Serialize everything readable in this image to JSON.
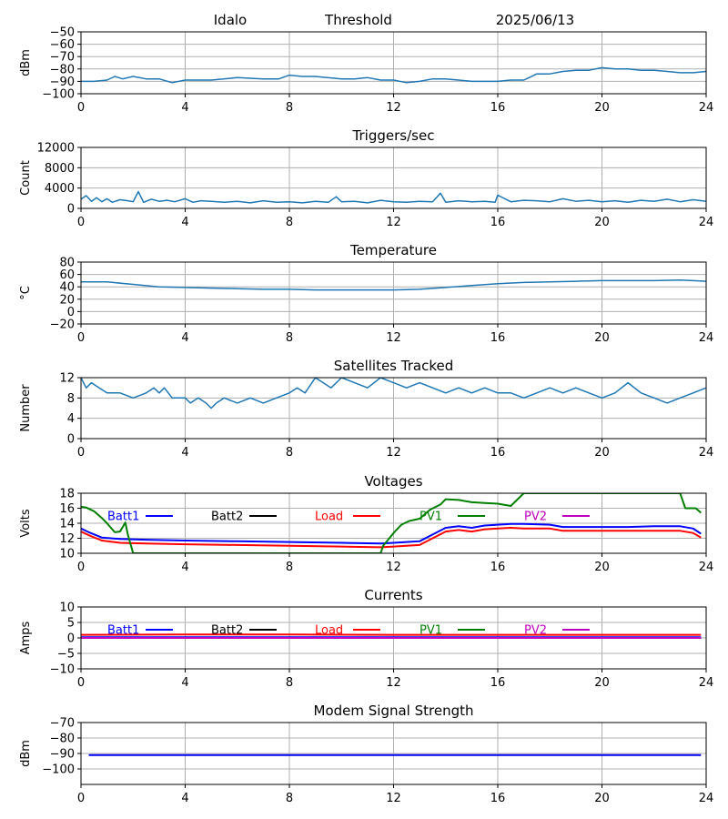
{
  "header": {
    "station": "Idalo",
    "mode": "Threshold",
    "date": "2025/06/13"
  },
  "colors": {
    "series_default": "#1f77b4",
    "grid": "#b0b0b0",
    "batt1": "#0000ff",
    "batt2": "#000000",
    "load": "#ff0000",
    "pv1": "#008000",
    "pv2": "#bf00bf"
  },
  "chart_data": [
    {
      "id": "threshold",
      "type": "line",
      "title": "",
      "xlabel": "",
      "ylabel": "dBm",
      "xlim": [
        0,
        24
      ],
      "ylim": [
        -100,
        -50
      ],
      "xticks": [
        0,
        4,
        8,
        12,
        16,
        20,
        24
      ],
      "yticks": [
        -100,
        -90,
        -80,
        -70,
        -60,
        -50
      ],
      "grid": true,
      "series": [
        {
          "color": "#1f77b4",
          "x": [
            0,
            0.5,
            1,
            1.3,
            1.6,
            2,
            2.5,
            3,
            3.5,
            4,
            5,
            6,
            7,
            7.6,
            8,
            8.5,
            9,
            10,
            10.5,
            11,
            11.5,
            12,
            12.5,
            13,
            13.5,
            14,
            14.5,
            15,
            15.5,
            16,
            16.5,
            17,
            17.2,
            17.5,
            18,
            18.5,
            19,
            19.5,
            20,
            20.5,
            21,
            21.5,
            22,
            22.5,
            23,
            23.5,
            24
          ],
          "values": [
            -90,
            -90,
            -89,
            -86,
            -88,
            -86,
            -88,
            -88,
            -91,
            -89,
            -89,
            -87,
            -88,
            -88,
            -85,
            -86,
            -86,
            -88,
            -88,
            -87,
            -89,
            -89,
            -91,
            -90,
            -88,
            -88,
            -89,
            -90,
            -90,
            -90,
            -89,
            -89,
            -87,
            -84,
            -84,
            -82,
            -81,
            -81,
            -79,
            -80,
            -80,
            -81,
            -81,
            -82,
            -83,
            -83,
            -82
          ]
        }
      ]
    },
    {
      "id": "triggers",
      "type": "line",
      "title": "Triggers/sec",
      "xlabel": "",
      "ylabel": "Count",
      "xlim": [
        0,
        24
      ],
      "ylim": [
        0,
        12000
      ],
      "xticks": [
        0,
        4,
        8,
        12,
        16,
        20,
        24
      ],
      "yticks": [
        0,
        4000,
        8000,
        12000
      ],
      "grid": true,
      "series": [
        {
          "color": "#1f77b4",
          "x": [
            0,
            0.2,
            0.4,
            0.6,
            0.8,
            1,
            1.2,
            1.5,
            1.8,
            2,
            2.2,
            2.4,
            2.7,
            3,
            3.3,
            3.6,
            4,
            4.3,
            4.6,
            5,
            5.5,
            6,
            6.5,
            7,
            7.5,
            8,
            8.5,
            9,
            9.5,
            9.8,
            10,
            10.5,
            11,
            11.5,
            12,
            12.5,
            13,
            13.5,
            13.8,
            14,
            14.5,
            15,
            15.5,
            15.9,
            16,
            16.5,
            17,
            17.5,
            18,
            18.5,
            19,
            19.5,
            20,
            20.5,
            21,
            21.5,
            22,
            22.5,
            23,
            23.5,
            24
          ],
          "values": [
            1800,
            2500,
            1400,
            2100,
            1300,
            1900,
            1200,
            1700,
            1500,
            1300,
            3300,
            1200,
            1800,
            1400,
            1600,
            1300,
            1900,
            1200,
            1500,
            1400,
            1200,
            1400,
            1100,
            1500,
            1200,
            1300,
            1100,
            1400,
            1200,
            2300,
            1300,
            1400,
            1100,
            1600,
            1300,
            1200,
            1400,
            1300,
            3000,
            1200,
            1500,
            1300,
            1400,
            1200,
            2600,
            1300,
            1600,
            1500,
            1300,
            1900,
            1400,
            1600,
            1300,
            1500,
            1200,
            1600,
            1400,
            1800,
            1300,
            1700,
            1400
          ]
        }
      ]
    },
    {
      "id": "temperature",
      "type": "line",
      "title": "Temperature",
      "xlabel": "",
      "ylabel": "°C",
      "xlim": [
        0,
        24
      ],
      "ylim": [
        -20,
        80
      ],
      "xticks": [
        0,
        4,
        8,
        12,
        16,
        20,
        24
      ],
      "yticks": [
        -20,
        0,
        20,
        40,
        60,
        80
      ],
      "grid": true,
      "series": [
        {
          "color": "#1f77b4",
          "x": [
            0,
            1,
            2,
            3,
            4,
            5,
            6,
            7,
            8,
            9,
            10,
            11,
            12,
            13,
            14,
            15,
            16,
            17,
            18,
            19,
            20,
            21,
            22,
            23,
            23.5,
            24
          ],
          "values": [
            48,
            48,
            44,
            40,
            39,
            38,
            37,
            36,
            36,
            35,
            35,
            35,
            35,
            36,
            39,
            42,
            45,
            47,
            48,
            49,
            50,
            50,
            50,
            51,
            50,
            49
          ]
        }
      ]
    },
    {
      "id": "satellites",
      "type": "line",
      "title": "Satellites Tracked",
      "xlabel": "",
      "ylabel": "Number",
      "xlim": [
        0,
        24
      ],
      "ylim": [
        0,
        12
      ],
      "xticks": [
        0,
        4,
        8,
        12,
        16,
        20,
        24
      ],
      "yticks": [
        0,
        4,
        8,
        12
      ],
      "grid": true,
      "series": [
        {
          "color": "#1f77b4",
          "x": [
            0,
            0.2,
            0.4,
            0.7,
            1,
            1.5,
            2,
            2.5,
            2.8,
            3,
            3.2,
            3.5,
            4,
            4.2,
            4.5,
            4.8,
            5,
            5.2,
            5.5,
            6,
            6.5,
            7,
            7.5,
            8,
            8.3,
            8.6,
            9,
            9.3,
            9.6,
            10,
            10.5,
            11,
            11.5,
            12,
            12.5,
            13,
            13.5,
            14,
            14.5,
            15,
            15.5,
            16,
            16.5,
            17,
            17.5,
            18,
            18.5,
            19,
            19.5,
            20,
            20.5,
            21,
            21.5,
            22,
            22.5,
            23,
            23.5,
            24
          ],
          "values": [
            12,
            10,
            11,
            10,
            9,
            9,
            8,
            9,
            10,
            9,
            10,
            8,
            8,
            7,
            8,
            7,
            6,
            7,
            8,
            7,
            8,
            7,
            8,
            9,
            10,
            9,
            12,
            11,
            10,
            12,
            11,
            10,
            12,
            11,
            10,
            11,
            10,
            9,
            10,
            9,
            10,
            9,
            9,
            8,
            9,
            10,
            9,
            10,
            9,
            8,
            9,
            11,
            9,
            8,
            7,
            8,
            9,
            10
          ]
        }
      ]
    },
    {
      "id": "voltages",
      "type": "line",
      "title": "Voltages",
      "xlabel": "",
      "ylabel": "Volts",
      "xlim": [
        0,
        24
      ],
      "ylim": [
        10,
        18
      ],
      "xticks": [
        0,
        4,
        8,
        12,
        16,
        20,
        24
      ],
      "yticks": [
        10,
        12,
        14,
        16,
        18
      ],
      "grid": true,
      "legend_placement": "top",
      "series": [
        {
          "name": "Batt1",
          "color": "#0000ff",
          "x": [
            0,
            0.3,
            0.8,
            1.5,
            2.5,
            4,
            6,
            8,
            10,
            11.5,
            12,
            13,
            13.5,
            14,
            14.5,
            15,
            15.5,
            16,
            16.5,
            17,
            18,
            18.5,
            19,
            20,
            21,
            22,
            23,
            23.5,
            23.8
          ],
          "values": [
            13.3,
            12.8,
            12.1,
            11.9,
            11.8,
            11.7,
            11.6,
            11.5,
            11.4,
            11.3,
            11.4,
            11.6,
            12.5,
            13.4,
            13.6,
            13.4,
            13.7,
            13.8,
            13.9,
            13.9,
            13.8,
            13.5,
            13.5,
            13.5,
            13.5,
            13.6,
            13.6,
            13.3,
            12.6
          ]
        },
        {
          "name": "Batt2",
          "color": "#000000",
          "x": [],
          "values": []
        },
        {
          "name": "Load",
          "color": "#ff0000",
          "x": [
            0,
            0.3,
            0.8,
            1.5,
            2.5,
            4,
            6,
            8,
            10,
            11.5,
            12,
            13,
            13.5,
            14,
            14.5,
            15,
            15.5,
            16,
            16.5,
            17,
            18,
            18.5,
            19,
            20,
            21,
            22,
            23,
            23.5,
            23.8
          ],
          "values": [
            12.9,
            12.4,
            11.7,
            11.4,
            11.3,
            11.2,
            11.1,
            11.0,
            10.9,
            10.8,
            10.9,
            11.1,
            12.0,
            12.9,
            13.1,
            12.9,
            13.2,
            13.3,
            13.4,
            13.3,
            13.3,
            13.0,
            13.0,
            13.0,
            13.0,
            13.0,
            13.0,
            12.7,
            12.1
          ]
        },
        {
          "name": "PV1",
          "color": "#008000",
          "x": [
            0,
            0.2,
            0.5,
            0.8,
            1,
            1.2,
            1.3,
            1.5,
            1.7,
            1.8,
            2,
            11.5,
            11.6,
            12,
            12.3,
            12.6,
            13,
            13.4,
            13.8,
            14,
            14.5,
            15,
            15.5,
            16,
            16.5,
            17,
            23,
            23.2,
            23.6,
            23.8
          ],
          "values": [
            16.2,
            16.1,
            15.6,
            14.7,
            14.0,
            13.2,
            12.8,
            12.9,
            14.1,
            12.5,
            10.0,
            10.0,
            11.0,
            12.7,
            13.8,
            14.3,
            14.6,
            15.8,
            16.5,
            17.2,
            17.1,
            16.8,
            16.7,
            16.6,
            16.3,
            18.0,
            18.0,
            16.0,
            16.0,
            15.4
          ]
        },
        {
          "name": "PV2",
          "color": "#bf00bf",
          "x": [],
          "values": []
        }
      ]
    },
    {
      "id": "currents",
      "type": "line",
      "title": "Currents",
      "xlabel": "",
      "ylabel": "Amps",
      "xlim": [
        0,
        24
      ],
      "ylim": [
        -10,
        10
      ],
      "xticks": [
        0,
        4,
        8,
        12,
        16,
        20,
        24
      ],
      "yticks": [
        -10,
        -5,
        0,
        5,
        10
      ],
      "grid": true,
      "legend_placement": "top",
      "series": [
        {
          "name": "Batt1",
          "color": "#0000ff",
          "x": [
            0,
            6,
            12,
            18,
            23.8
          ],
          "values": [
            0.2,
            0.2,
            0.2,
            0.2,
            0.2
          ]
        },
        {
          "name": "Batt2",
          "color": "#000000",
          "x": [
            0,
            6,
            12,
            18,
            23.8
          ],
          "values": [
            0.0,
            0.0,
            0.0,
            0.0,
            0.0
          ]
        },
        {
          "name": "Load",
          "color": "#ff0000",
          "x": [
            0,
            4,
            8,
            12,
            16,
            20,
            23.8
          ],
          "values": [
            1.0,
            1.1,
            1.1,
            1.0,
            1.0,
            1.0,
            1.0
          ]
        },
        {
          "name": "PV1",
          "color": "#008000",
          "x": [
            0,
            6,
            12,
            18,
            23.8
          ],
          "values": [
            0.0,
            0.0,
            0.0,
            0.0,
            0.0
          ]
        },
        {
          "name": "PV2",
          "color": "#bf00bf",
          "x": [
            0,
            6,
            12,
            18,
            23.8
          ],
          "values": [
            0.0,
            0.0,
            0.0,
            0.0,
            0.0
          ]
        }
      ]
    },
    {
      "id": "modem",
      "type": "line",
      "title": "Modem Signal Strength",
      "xlabel": "",
      "ylabel": "dBm",
      "xlim": [
        0,
        24
      ],
      "ylim": [
        -110,
        -70
      ],
      "xticks": [
        0,
        4,
        8,
        12,
        16,
        20,
        24
      ],
      "yticks": [
        -100,
        -90,
        -80,
        -70
      ],
      "grid": true,
      "series": [
        {
          "color": "#0000ff",
          "x": [
            0.3,
            23.8
          ],
          "values": [
            -91,
            -91
          ]
        }
      ]
    }
  ]
}
